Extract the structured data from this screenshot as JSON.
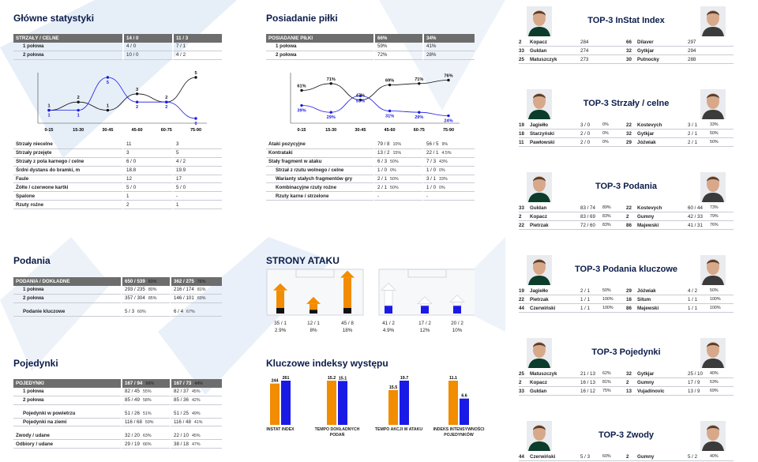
{
  "colors": {
    "accent_navy": "#0b1c4a",
    "orange": "#f28c00",
    "blue": "#1a1ae6",
    "header_gray": "#6d6d6d",
    "deco_blue": "#dfe9f5"
  },
  "main_stats": {
    "title": "Główne statystyki",
    "header": [
      "STRZAŁY / CELNE",
      "14 / 0",
      "11 / 3"
    ],
    "halves": [
      [
        "1 połowa",
        "4 / 0",
        "7 / 1"
      ],
      [
        "2 połowa",
        "10 / 0",
        "4 / 2"
      ]
    ],
    "chart": {
      "x": [
        "0-15",
        "15-30",
        "30-45",
        "45-60",
        "60-75",
        "75-90"
      ],
      "series": [
        {
          "color": "black",
          "values": [
            1,
            2,
            1,
            3,
            2,
            5
          ]
        },
        {
          "color": "blue",
          "values": [
            1,
            1,
            5,
            2,
            2,
            0
          ]
        }
      ]
    },
    "rows": [
      [
        "Strzały niecelne",
        "11",
        "3"
      ],
      [
        "Strzały przejęte",
        "3",
        "5"
      ],
      [
        "Strzały z pola karnego / celne",
        "6 / 0",
        "4 / 2"
      ],
      [
        "Śrdni dystans do bramki, m",
        "18.8",
        "19.9"
      ],
      [
        "Faule",
        "12",
        "17"
      ],
      [
        "Żółte / czerwone kartki",
        "5 / 0",
        "5 / 0"
      ],
      [
        "Spalone",
        "1",
        "-"
      ],
      [
        "Rzuty rożne",
        "2",
        "1"
      ]
    ]
  },
  "possession": {
    "title": "Posiadanie piłki",
    "header": [
      "POSIADANIE PIŁKI",
      "66%",
      "34%"
    ],
    "halves": [
      [
        "1 połowa",
        "59%",
        "41%"
      ],
      [
        "2 połowa",
        "72%",
        "28%"
      ]
    ],
    "chart": {
      "x": [
        "0-15",
        "15-30",
        "30-45",
        "45-60",
        "60-75",
        "75-90"
      ],
      "series": [
        {
          "color": "black",
          "values": [
            61,
            71,
            47,
            69,
            71,
            76
          ],
          "labels": [
            "61%",
            "71%",
            "47%",
            "69%",
            "71%",
            "76%"
          ]
        },
        {
          "color": "blue",
          "values": [
            39,
            29,
            53,
            31,
            29,
            24
          ],
          "labels": [
            "39%",
            "29%",
            "53%",
            "31%",
            "29%",
            "24%"
          ]
        }
      ]
    },
    "rows": [
      {
        "label": "Ataki pozycyjne",
        "indent": false,
        "a": "79 / 8",
        "ap": "10%",
        "b": "56 / 5",
        "bp": "9%"
      },
      {
        "label": "Kontrataki",
        "indent": false,
        "a": "13 / 2",
        "ap": "15%",
        "b": "22 / 1",
        "bp": "4.5%"
      },
      {
        "label": "Stały fragment w ataku",
        "indent": false,
        "a": "6 / 3",
        "ap": "50%",
        "b": "7 / 3",
        "bp": "43%"
      },
      {
        "label": "Strzał z rzutu wolnego / celne",
        "indent": true,
        "a": "1 / 0",
        "ap": "0%",
        "b": "1 / 0",
        "bp": "0%"
      },
      {
        "label": "Warianty stałych fragmentów gry",
        "indent": true,
        "a": "2 / 1",
        "ap": "50%",
        "b": "3 / 1",
        "bp": "33%"
      },
      {
        "label": "Kombinacyjne rzuty rożne",
        "indent": true,
        "a": "2 / 1",
        "ap": "50%",
        "b": "1 / 0",
        "bp": "0%"
      },
      {
        "label": "Rzuty karne / strzelone",
        "indent": true,
        "a": "-",
        "ap": "",
        "b": "-",
        "bp": ""
      }
    ]
  },
  "passes": {
    "title": "Podania",
    "header": {
      "label": "PODANIA / DOKŁADNE",
      "a": "650 / 539",
      "ap": "83%",
      "b": "362 / 275",
      "bp": "76%"
    },
    "rows": [
      {
        "label": "1 połowa",
        "a": "293 / 235",
        "ap": "80%",
        "b": "216 / 174",
        "bp": "81%"
      },
      {
        "label": "2 połowa",
        "a": "357 / 304",
        "ap": "85%",
        "b": "146 / 101",
        "bp": "69%"
      }
    ],
    "key": {
      "label": "Podanie kluczowe",
      "a": "5 / 3",
      "ap": "60%",
      "b": "6 / 4",
      "bp": "67%"
    }
  },
  "duels": {
    "title": "Pojedynki",
    "header": {
      "label": "POJEDYNKI",
      "a": "167 / 94",
      "ap": "56%",
      "b": "167 / 73",
      "bp": "44%"
    },
    "groups": [
      [
        {
          "label": "1 połowa",
          "a": "82 / 45",
          "ap": "55%",
          "b": "82 / 37",
          "bp": "45%"
        },
        {
          "label": "2 połowa",
          "a": "85 / 49",
          "ap": "58%",
          "b": "85 / 36",
          "bp": "42%"
        }
      ],
      [
        {
          "label": "Pojedynki w powietrzu",
          "a": "51 / 26",
          "ap": "51%",
          "b": "51 / 25",
          "bp": "49%"
        },
        {
          "label": "Pojedynki na ziemi",
          "a": "116 / 68",
          "ap": "59%",
          "b": "116 / 48",
          "bp": "41%"
        }
      ],
      [
        {
          "label": "Zwody / udane",
          "a": "32 / 20",
          "ap": "63%",
          "b": "22 / 10",
          "bp": "45%",
          "left": true
        },
        {
          "label": "Odbiory / udane",
          "a": "29 / 19",
          "ap": "66%",
          "b": "38 / 18",
          "bp": "47%",
          "left": true
        }
      ]
    ]
  },
  "attack_sides": {
    "title": "STRONY ATAKU",
    "left_team": [
      {
        "value": "35 / 1",
        "pct": "2.9%",
        "share": 0.29
      },
      {
        "value": "12 / 1",
        "pct": "8%",
        "share": 0.12
      },
      {
        "value": "45 / 8",
        "pct": "18%",
        "share": 0.45
      }
    ],
    "right_team": [
      {
        "value": "41 / 2",
        "pct": "4.9%",
        "share": 0.41
      },
      {
        "value": "17 / 2",
        "pct": "12%",
        "share": 0.17
      },
      {
        "value": "20 / 2",
        "pct": "10%",
        "share": 0.2
      }
    ]
  },
  "key_indexes": {
    "title": "Kluczowe indeksy występu",
    "items": [
      {
        "label1": "INSTAT INDEX",
        "label2": "",
        "a": 244,
        "b": 261,
        "a_label": "244",
        "b_label": "261"
      },
      {
        "label1": "TEMPO DOKŁADNYCH",
        "label2": "PODAŃ",
        "a": 15.2,
        "b": 15.1,
        "a_label": "15.2",
        "b_label": "15.1"
      },
      {
        "label1": "TEMPO AKCJI W ATAKU",
        "label2": "",
        "a": 15.5,
        "b": 19.7,
        "a_label": "15.5",
        "b_label": "19.7"
      },
      {
        "label1": "INDEKS INTENSYWNOŚCI",
        "label2": "POJEDYNKÓW",
        "a": 11.1,
        "b": 6.6,
        "a_label": "11.1",
        "b_label": "6.6"
      }
    ]
  },
  "top3": [
    {
      "title": "TOP-3 InStat Index",
      "left": [
        [
          "2",
          "Kopacz",
          "284",
          ""
        ],
        [
          "33",
          "Guldan",
          "274",
          ""
        ],
        [
          "25",
          "Matuszczyk",
          "273",
          ""
        ]
      ],
      "right": [
        [
          "66",
          "Dilaver",
          "297",
          ""
        ],
        [
          "32",
          "Gytkjar",
          "294",
          ""
        ],
        [
          "30",
          "Putnocky",
          "288",
          ""
        ]
      ]
    },
    {
      "title": "TOP-3 Strzały / celne",
      "left": [
        [
          "19",
          "Jagiełło",
          "3 / 0",
          "0%"
        ],
        [
          "18",
          "Starzyński",
          "2 / 0",
          "0%"
        ],
        [
          "11",
          "Pawłowski",
          "2 / 0",
          "0%"
        ]
      ],
      "right": [
        [
          "22",
          "Kostevych",
          "3 / 1",
          "33%"
        ],
        [
          "32",
          "Gytkjar",
          "2 / 1",
          "50%"
        ],
        [
          "29",
          "Jóźwiak",
          "2 / 1",
          "50%"
        ]
      ]
    },
    {
      "title": "TOP-3 Podania",
      "left": [
        [
          "33",
          "Guldan",
          "83 / 74",
          "89%"
        ],
        [
          "2",
          "Kopacz",
          "83 / 69",
          "83%"
        ],
        [
          "22",
          "Pietrzak",
          "72 / 60",
          "83%"
        ]
      ],
      "right": [
        [
          "22",
          "Kostevych",
          "60 / 44",
          "73%"
        ],
        [
          "2",
          "Gumny",
          "42 / 33",
          "79%"
        ],
        [
          "86",
          "Majewski",
          "41 / 31",
          "76%"
        ]
      ]
    },
    {
      "title": "TOP-3 Podania kluczowe",
      "left": [
        [
          "19",
          "Jagiełło",
          "2 / 1",
          "50%"
        ],
        [
          "22",
          "Pietrzak",
          "1 / 1",
          "100%"
        ],
        [
          "44",
          "Czerwiński",
          "1 / 1",
          "100%"
        ]
      ],
      "right": [
        [
          "29",
          "Jóźwiak",
          "4 / 2",
          "50%"
        ],
        [
          "16",
          "Situm",
          "1 / 1",
          "100%"
        ],
        [
          "86",
          "Majewski",
          "1 / 1",
          "100%"
        ]
      ]
    },
    {
      "title": "TOP-3 Pojedynki",
      "left": [
        [
          "25",
          "Matuszczyk",
          "21 / 13",
          "62%"
        ],
        [
          "2",
          "Kopacz",
          "16 / 13",
          "81%"
        ],
        [
          "33",
          "Guldan",
          "16 / 12",
          "75%"
        ]
      ],
      "right": [
        [
          "32",
          "Gytkjar",
          "25 / 10",
          "40%"
        ],
        [
          "2",
          "Gumny",
          "17 / 9",
          "53%"
        ],
        [
          "13",
          "Vujadinovic",
          "13 / 9",
          "69%"
        ]
      ]
    },
    {
      "title": "TOP-3 Zwody",
      "left": [
        [
          "44",
          "Czerwiński",
          "5 / 3",
          "60%"
        ]
      ],
      "right": [
        [
          "2",
          "Gumny",
          "5 / 2",
          "40%"
        ]
      ]
    }
  ]
}
